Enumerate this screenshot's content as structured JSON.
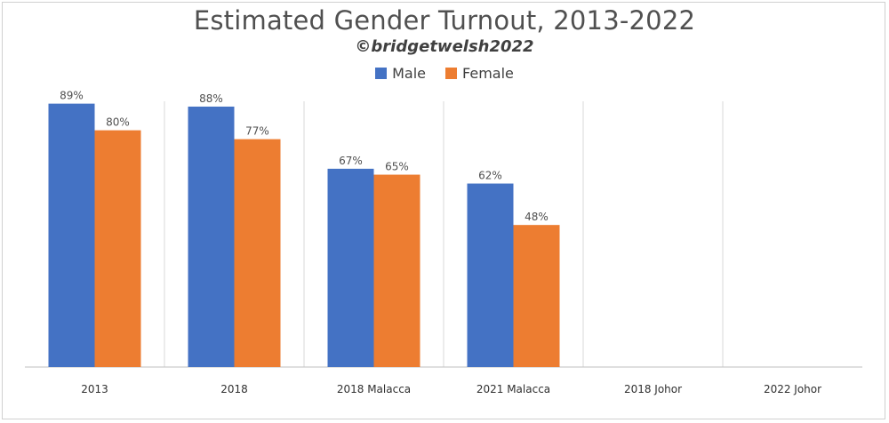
{
  "chart_data": {
    "type": "bar",
    "title": "Estimated Gender Turnout, 2013-2022",
    "subtitle": "©bridgetwelsh2022",
    "categories": [
      "2013",
      "2018",
      "2018 Malacca",
      "2021 Malacca",
      "2018 Johor",
      "2022 Johor"
    ],
    "series": [
      {
        "name": "Male",
        "color": "#4472C4",
        "values": [
          89,
          88,
          67,
          62,
          null,
          null
        ],
        "labels": [
          "89%",
          "88%",
          "67%",
          "62%",
          "",
          ""
        ]
      },
      {
        "name": "Female",
        "color": "#ED7D31",
        "values": [
          80,
          77,
          65,
          48,
          null,
          null
        ],
        "labels": [
          "80%",
          "77%",
          "65%",
          "48%",
          "",
          ""
        ]
      }
    ],
    "ylim": [
      0,
      100
    ],
    "grid": "vertical category separators",
    "legend": "top-center"
  }
}
